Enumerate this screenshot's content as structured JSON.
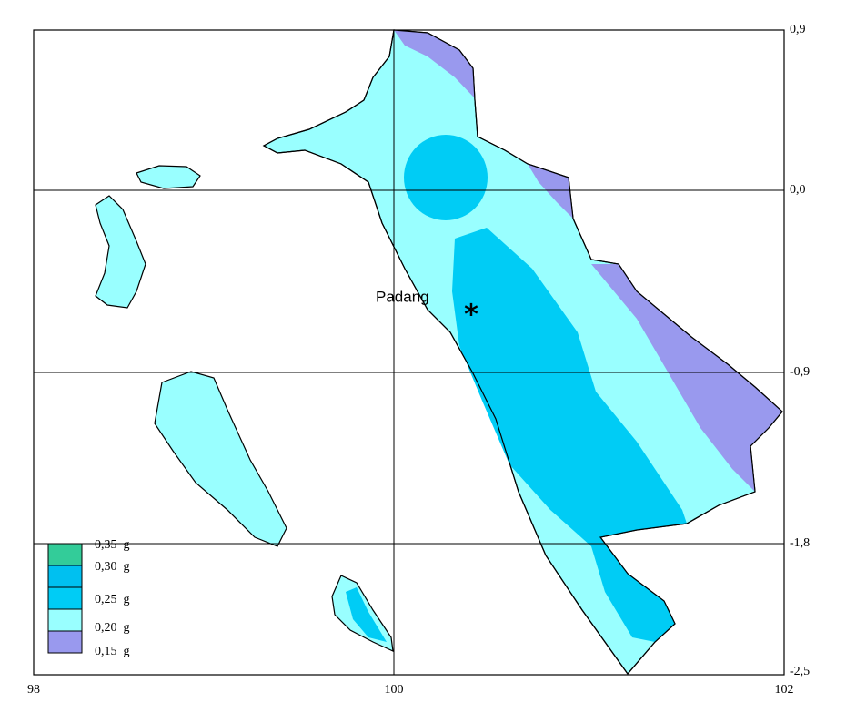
{
  "map": {
    "x_labels": [
      "98",
      "100",
      "102"
    ],
    "y_labels": [
      "0,9",
      "0,0",
      "-0,9",
      "-1,8",
      "-2,5"
    ],
    "place": "Padang",
    "legend": [
      "0,35  g",
      "0,30  g",
      "0,25  g",
      "0,20  g",
      "0,15  g"
    ]
  }
}
